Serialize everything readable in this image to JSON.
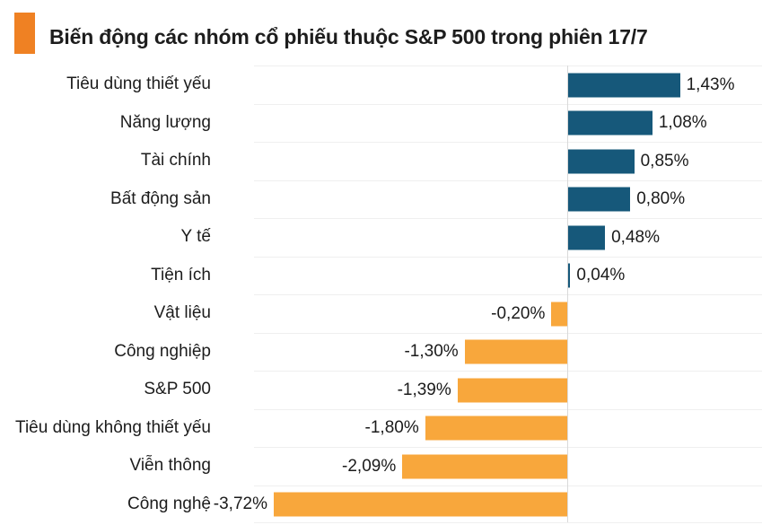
{
  "header": {
    "marker_color": "#EF8123",
    "title": "Biến động các nhóm cổ phiếu thuộc S&P 500 trong phiên 17/7"
  },
  "chart_data": {
    "type": "bar",
    "orientation": "horizontal",
    "title": "Biến động các nhóm cổ phiếu thuộc S&P 500 trong phiên 17/7",
    "categories": [
      "Tiêu dùng thiết yếu",
      "Năng lượng",
      "Tài chính",
      "Bất động sản",
      "Y tế",
      "Tiện ích",
      "Vật liệu",
      "Công nghiệp",
      "S&P 500",
      "Tiêu dùng không thiết yếu",
      "Viễn thông",
      "Công nghệ"
    ],
    "values": [
      1.43,
      1.08,
      0.85,
      0.8,
      0.48,
      0.04,
      -0.2,
      -1.3,
      -1.39,
      -1.8,
      -2.09,
      -3.72
    ],
    "value_labels": [
      "1,43%",
      "1,08%",
      "0,85%",
      "0,80%",
      "0,48%",
      "0,04%",
      "-0,20%",
      "-1,30%",
      "-1,39%",
      "-1,80%",
      "-2,09%",
      "-3,72%"
    ],
    "unit": "%",
    "xlim": [
      -3.97,
      2.47
    ],
    "xlabel": "",
    "ylabel": "",
    "legend": "none",
    "grid": "light horizontal row separators + vertical zero axis",
    "colors": {
      "positive": "#16587A",
      "negative": "#F8A73C",
      "zero_axis": "#D9D9D9",
      "gridline": "#EFEFEF",
      "text": "#1B1B1B"
    }
  }
}
